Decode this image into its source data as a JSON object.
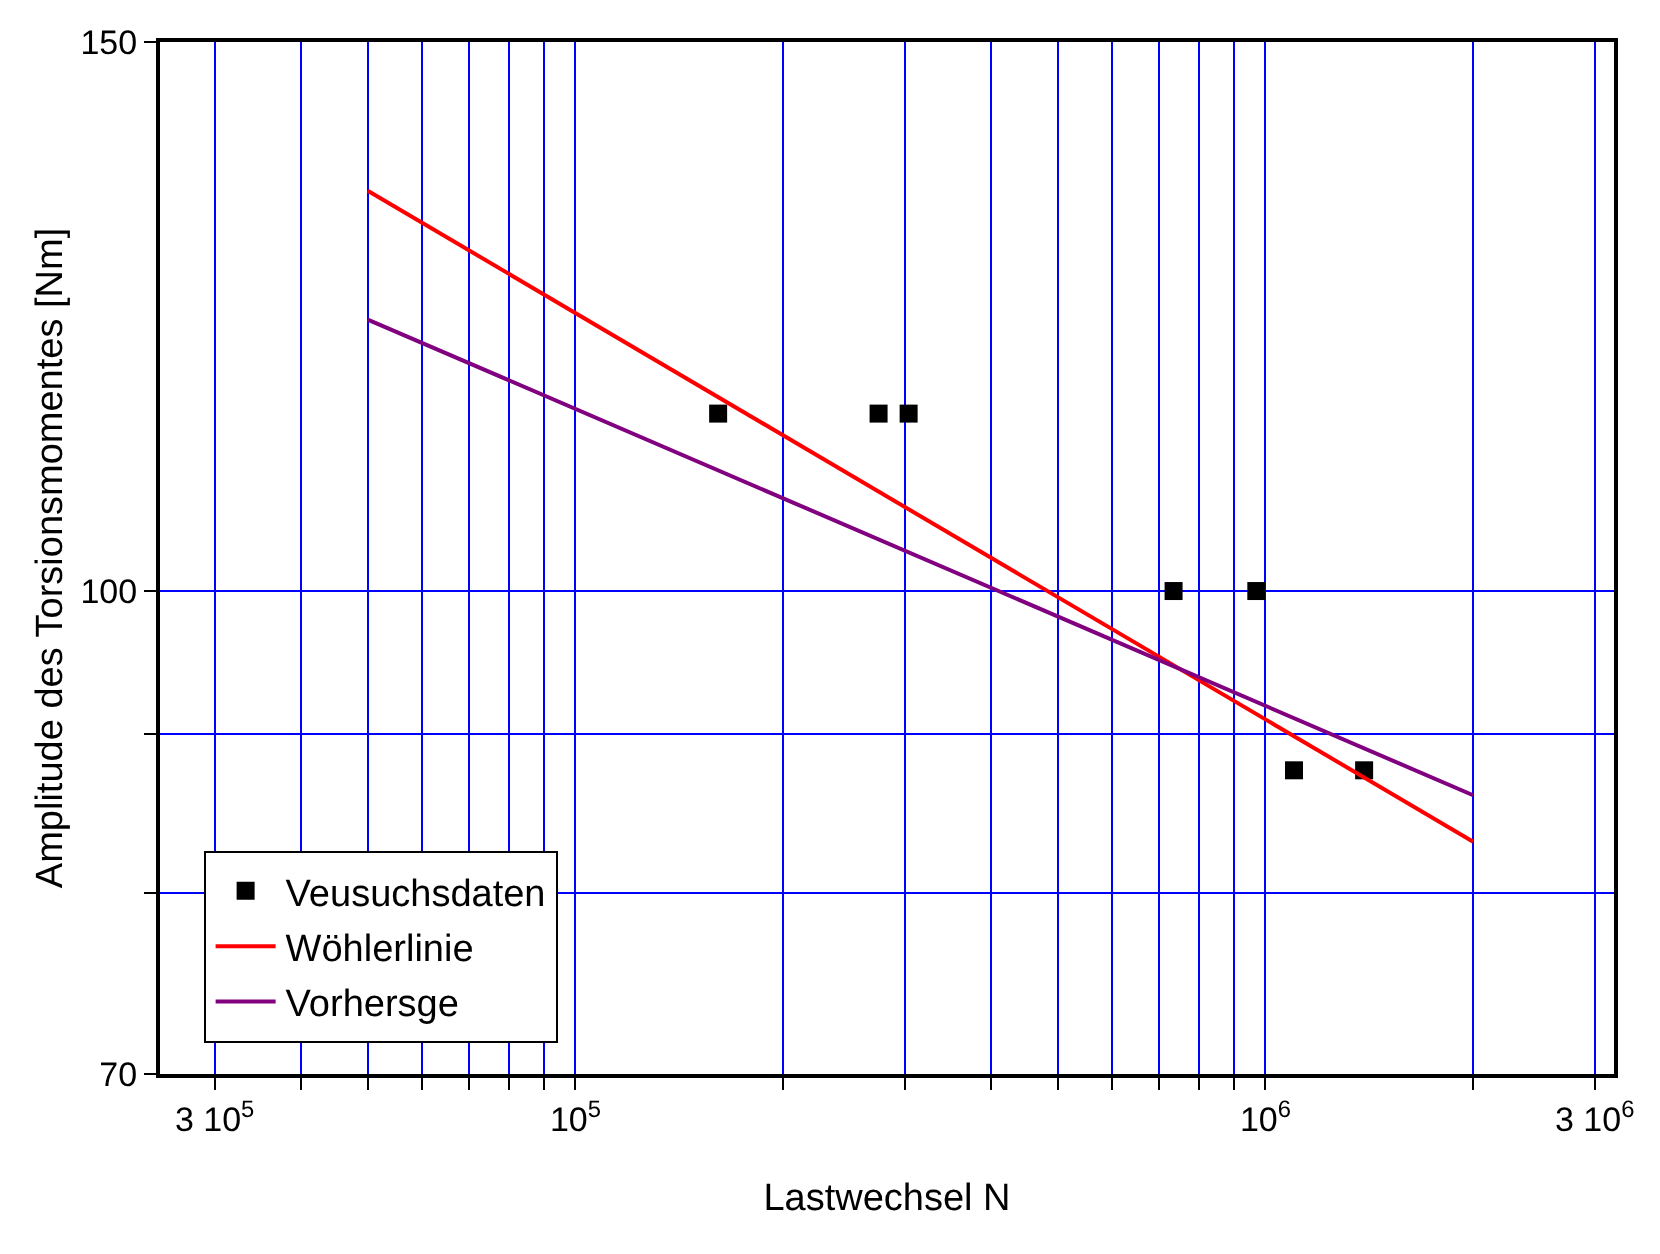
{
  "chart_data": {
    "type": "scatter",
    "xlabel": "Lastwechsel N",
    "ylabel": "Amplitude des Torsionsmomentes [Nm]",
    "log": "xy",
    "grid": true,
    "legend": "bottom left",
    "xlim": [
      25000,
      3200000
    ],
    "xticks": [
      {
        "value": 30000,
        "label": "3 10$^{5}$"
      },
      {
        "value": 40000,
        "label": null
      },
      {
        "value": 50000,
        "label": null
      },
      {
        "value": 60000,
        "label": null
      },
      {
        "value": 70000,
        "label": null
      },
      {
        "value": 80000,
        "label": null
      },
      {
        "value": 90000,
        "label": null
      },
      {
        "value": 100000,
        "label": "10$^{5}$"
      },
      {
        "value": 200000,
        "label": null
      },
      {
        "value": 300000,
        "label": null
      },
      {
        "value": 400000,
        "label": null
      },
      {
        "value": 500000,
        "label": null
      },
      {
        "value": 600000,
        "label": null
      },
      {
        "value": 700000,
        "label": null
      },
      {
        "value": 800000,
        "label": null
      },
      {
        "value": 900000,
        "label": null
      },
      {
        "value": 1000000,
        "label": "10$^{6}$"
      },
      {
        "value": 2000000,
        "label": null
      },
      {
        "value": 3000000,
        "label": "3 10$^{6}$"
      }
    ],
    "ylim": [
      70,
      150
    ],
    "yticks": [
      70,
      {
        "value": 80,
        "label": null
      },
      {
        "value": 90,
        "label": null
      },
      100,
      150
    ],
    "series": [
      {
        "name": "Veusuchsdaten",
        "marker": "square",
        "color": "#000000",
        "x": [
          161000,
          275000,
          304000,
          736000,
          970000,
          1100000,
          1390000
        ],
        "values": [
          114,
          114,
          114,
          100,
          100,
          87.6,
          87.6
        ]
      },
      {
        "name": "Wöhlerlinie",
        "type": "line",
        "color": "#ff0000",
        "x": [
          50000,
          2000000
        ],
        "values": [
          134.4,
          83.1
        ]
      },
      {
        "name": "Vorhersge",
        "type": "line",
        "color": "#800080",
        "x": [
          50000,
          2000000
        ],
        "values": [
          122.2,
          86.0
        ]
      }
    ]
  }
}
